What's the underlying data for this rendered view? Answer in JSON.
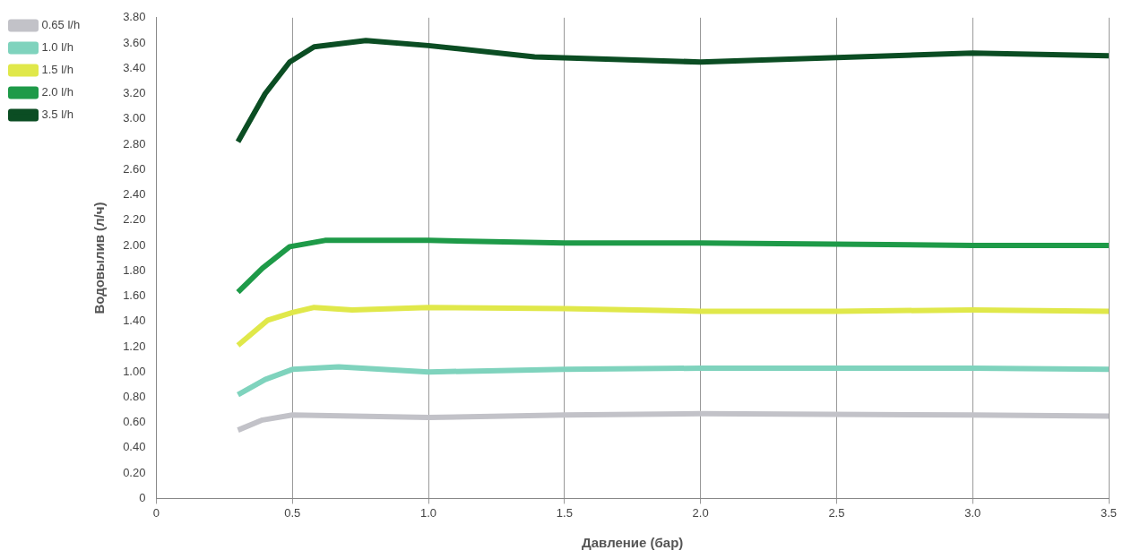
{
  "chart_data": {
    "type": "line",
    "xlabel": "Давление (бар)",
    "ylabel": "Водовылив (л/ч)",
    "xlim": [
      0,
      3.5
    ],
    "xticks": [
      0,
      0.5,
      {
        "value": 1,
        "label": "1.0"
      },
      1.5,
      {
        "value": 2,
        "label": "2.0"
      },
      2.5,
      {
        "value": 3,
        "label": "3.0"
      },
      3.5
    ],
    "ylim": [
      0,
      3.8
    ],
    "yticks": [
      0,
      {
        "value": 0.2,
        "label": "0.20"
      },
      {
        "value": 0.4,
        "label": "0.40"
      },
      {
        "value": 0.6,
        "label": "0.60"
      },
      {
        "value": 0.8,
        "label": "0.80"
      },
      {
        "value": 1,
        "label": "1.00"
      },
      {
        "value": 1.2,
        "label": "1.20"
      },
      {
        "value": 1.4,
        "label": "1.40"
      },
      {
        "value": 1.6,
        "label": "1.60"
      },
      {
        "value": 1.8,
        "label": "1.80"
      },
      {
        "value": 2,
        "label": "2.00"
      },
      {
        "value": 2.2,
        "label": "2.20"
      },
      {
        "value": 2.4,
        "label": "2.40"
      },
      {
        "value": 2.6,
        "label": "2.60"
      },
      {
        "value": 2.8,
        "label": "2.80"
      },
      {
        "value": 3,
        "label": "3.00"
      },
      {
        "value": 3.2,
        "label": "3.20"
      },
      {
        "value": 3.4,
        "label": "3.40"
      },
      {
        "value": 3.6,
        "label": "3.60"
      },
      {
        "value": 3.8,
        "label": "3.80"
      }
    ],
    "grid": "x",
    "legend": "top left",
    "marker": "none",
    "line_style": "solid",
    "series": [
      {
        "name": "0.65 l/h",
        "color": "#c2c2c8",
        "x": [
          0.3,
          0.39,
          0.5,
          1.0,
          1.5,
          2.0,
          3.0,
          3.5
        ],
        "values": [
          0.54,
          0.62,
          0.66,
          0.64,
          0.66,
          0.67,
          0.66,
          0.65
        ]
      },
      {
        "name": "1.0 l/h",
        "color": "#7fd3bd",
        "x": [
          0.3,
          0.4,
          0.5,
          0.67,
          1.0,
          1.5,
          2.0,
          3.0,
          3.5
        ],
        "values": [
          0.82,
          0.94,
          1.02,
          1.04,
          1.0,
          1.02,
          1.03,
          1.03,
          1.02
        ]
      },
      {
        "name": "1.5 l/h",
        "color": "#e0e84a",
        "x": [
          0.3,
          0.41,
          0.5,
          0.58,
          0.72,
          1.0,
          1.5,
          2.0,
          2.5,
          3.0,
          3.5
        ],
        "values": [
          1.21,
          1.41,
          1.47,
          1.51,
          1.49,
          1.51,
          1.5,
          1.48,
          1.48,
          1.49,
          1.48
        ]
      },
      {
        "name": "2.0 l/h",
        "color": "#1e9a48",
        "x": [
          0.3,
          0.39,
          0.49,
          0.62,
          1.0,
          1.5,
          2.0,
          3.0,
          3.5
        ],
        "values": [
          1.63,
          1.82,
          1.99,
          2.04,
          2.04,
          2.02,
          2.02,
          2.0,
          2.0
        ]
      },
      {
        "name": "3.5 l/h",
        "color": "#0b4d23",
        "x": [
          0.3,
          0.4,
          0.49,
          0.58,
          0.77,
          1.0,
          1.39,
          2.0,
          3.0,
          3.5
        ],
        "values": [
          2.82,
          3.2,
          3.45,
          3.57,
          3.62,
          3.58,
          3.49,
          3.45,
          3.52,
          3.5
        ]
      }
    ]
  }
}
